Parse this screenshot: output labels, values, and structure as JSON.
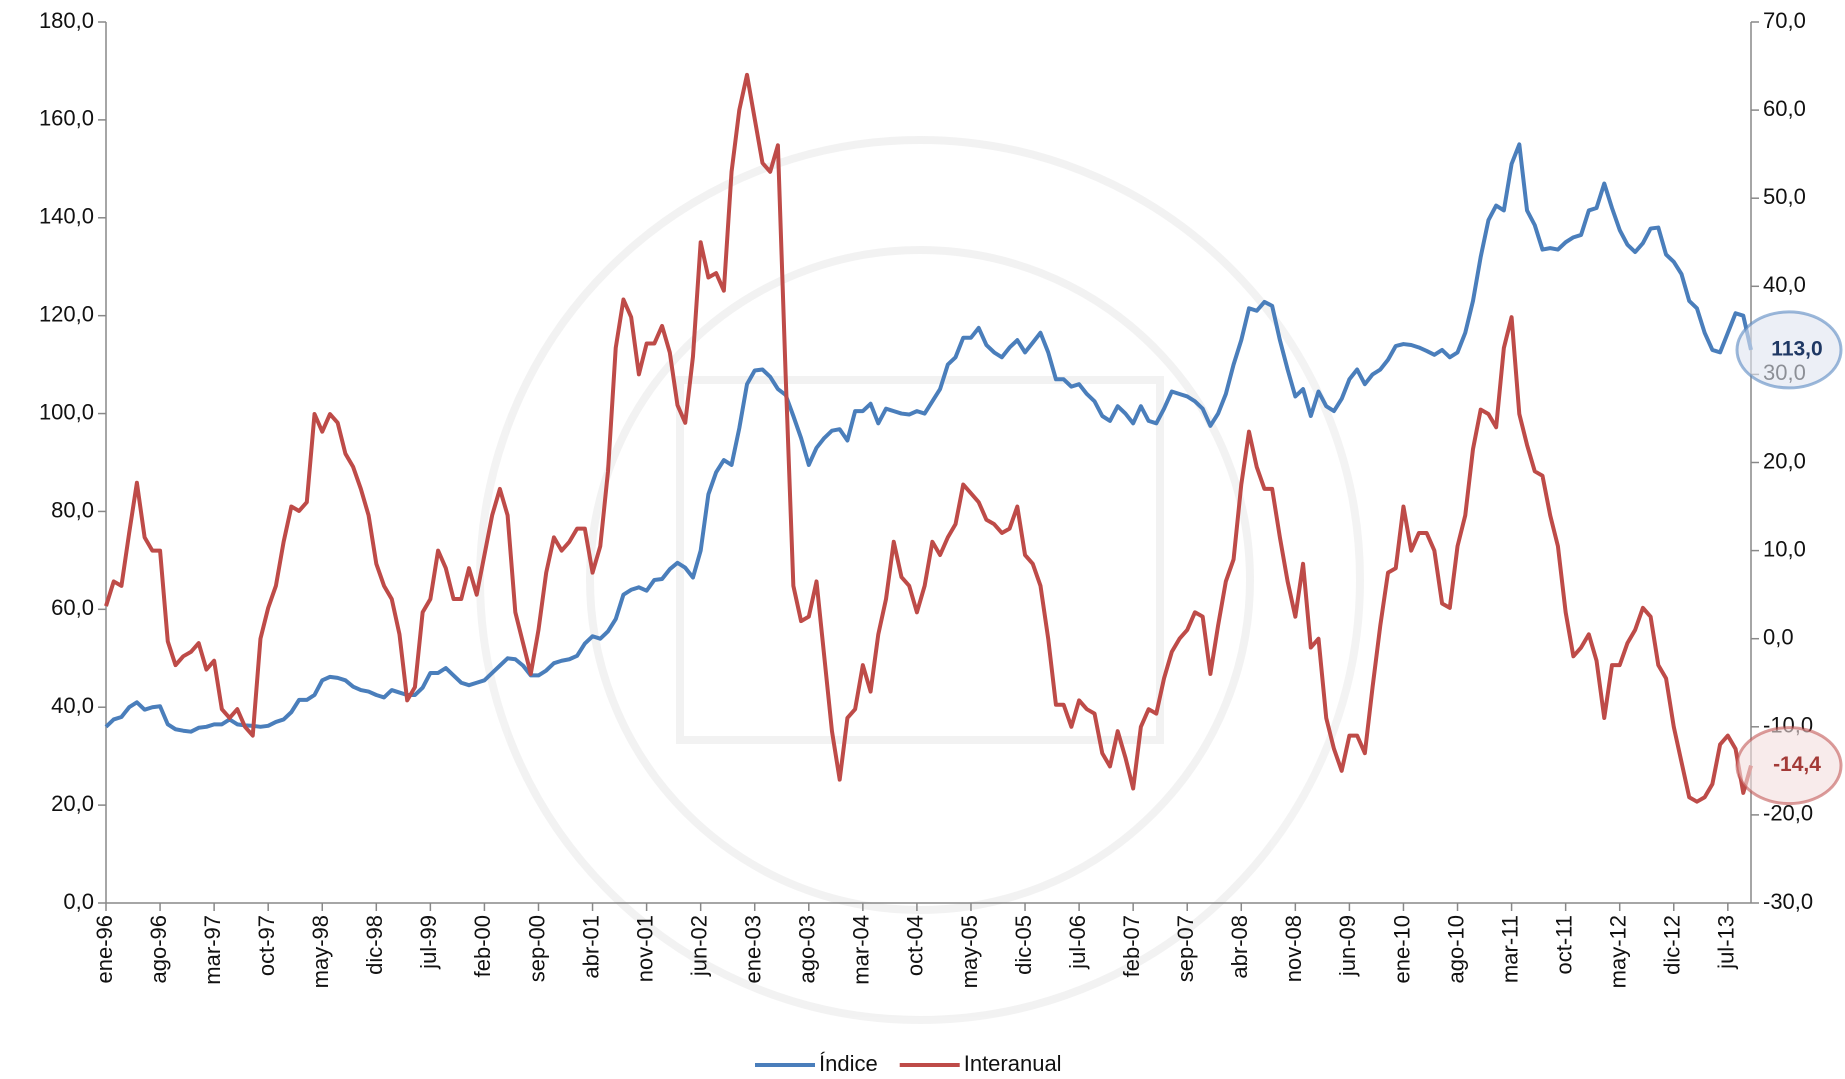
{
  "chart_data": {
    "type": "line",
    "categories": [
      "ene-96",
      null,
      null,
      null,
      null,
      null,
      null,
      "ago-96",
      null,
      null,
      null,
      null,
      null,
      null,
      "mar-97",
      null,
      null,
      null,
      null,
      null,
      null,
      "oct-97",
      null,
      null,
      null,
      null,
      null,
      null,
      "may-98",
      null,
      null,
      null,
      null,
      null,
      null,
      "dic-98",
      null,
      null,
      null,
      null,
      null,
      null,
      "jul-99",
      null,
      null,
      null,
      null,
      null,
      null,
      "feb-00",
      null,
      null,
      null,
      null,
      null,
      null,
      "sep-00",
      null,
      null,
      null,
      null,
      null,
      null,
      "abr-01",
      null,
      null,
      null,
      null,
      null,
      null,
      "nov-01",
      null,
      null,
      null,
      null,
      null,
      null,
      "jun-02",
      null,
      null,
      null,
      null,
      null,
      null,
      "ene-03",
      null,
      null,
      null,
      null,
      null,
      null,
      "ago-03",
      null,
      null,
      null,
      null,
      null,
      null,
      "mar-04",
      null,
      null,
      null,
      null,
      null,
      null,
      "oct-04",
      null,
      null,
      null,
      null,
      null,
      null,
      "may-05",
      null,
      null,
      null,
      null,
      null,
      null,
      "dic-05",
      null,
      null,
      null,
      null,
      null,
      null,
      "jul-06",
      null,
      null,
      null,
      null,
      null,
      null,
      "feb-07",
      null,
      null,
      null,
      null,
      null,
      null,
      "sep-07",
      null,
      null,
      null,
      null,
      null,
      null,
      "abr-08",
      null,
      null,
      null,
      null,
      null,
      null,
      "nov-08",
      null,
      null,
      null,
      null,
      null,
      null,
      "jun-09",
      null,
      null,
      null,
      null,
      null,
      null,
      "ene-10",
      null,
      null,
      null,
      null,
      null,
      null,
      "ago-10",
      null,
      null,
      null,
      null,
      null,
      null,
      "mar-11",
      null,
      null,
      null,
      null,
      null,
      null,
      "oct-11",
      null,
      null,
      null,
      null,
      null,
      null,
      "may-12",
      null,
      null,
      null,
      null,
      null,
      null,
      "dic-12",
      null,
      null,
      null,
      null,
      null,
      null,
      "jul-13",
      null,
      null,
      null
    ],
    "series": [
      {
        "name": "Índice",
        "color": "#4a7ebb",
        "axis": "y",
        "end_label": "113,0",
        "values": [
          36,
          37.5,
          38,
          40,
          41,
          39.5,
          40,
          40.2,
          36.5,
          35.5,
          35.2,
          35,
          35.8,
          36,
          36.5,
          36.5,
          37.5,
          36.5,
          36.3,
          36.2,
          36,
          36.2,
          37,
          37.5,
          39,
          41.5,
          41.5,
          42.5,
          45.5,
          46.2,
          46,
          45.5,
          44.2,
          43.5,
          43.2,
          42.5,
          42,
          43.5,
          43,
          42.5,
          42.5,
          44,
          47,
          47,
          48,
          46.5,
          45,
          44.5,
          45,
          45.5,
          47,
          48.5,
          50,
          49.8,
          48.5,
          46.5,
          46.5,
          47.5,
          49,
          49.5,
          49.8,
          50.5,
          53,
          54.5,
          54,
          55.5,
          58,
          63,
          64,
          64.5,
          63.8,
          66,
          66.2,
          68.2,
          69.5,
          68.5,
          66.5,
          72,
          83.5,
          88,
          90.5,
          89.5,
          97,
          106,
          108.8,
          109,
          107.5,
          105,
          103.8,
          99.5,
          95,
          89.5,
          93,
          95,
          96.5,
          96.8,
          94.5,
          100.5,
          100.5,
          102,
          98,
          101,
          100.5,
          100,
          99.8,
          100.5,
          100,
          102.5,
          105,
          110,
          111.5,
          115.5,
          115.5,
          117.5,
          114,
          112.5,
          111.5,
          113.5,
          115,
          112.5,
          114.5,
          116.5,
          112.5,
          107,
          107,
          105.5,
          106,
          104,
          102.5,
          99.5,
          98.5,
          101.5,
          100,
          98,
          101.5,
          98.5,
          98,
          101,
          104.5,
          104,
          103.5,
          102.5,
          101,
          97.5,
          100,
          104,
          110,
          115,
          121.5,
          121,
          122.8,
          122,
          115,
          109,
          103.5,
          105,
          99.5,
          104.5,
          101.5,
          100.5,
          103,
          107,
          109,
          106,
          108,
          109,
          111,
          113.8,
          114.2,
          114,
          113.5,
          112.8,
          112,
          113,
          111.5,
          112.5,
          116.5,
          123,
          132,
          139.5,
          142.5,
          141.5,
          151,
          155,
          141.5,
          138.5,
          133.5,
          133.8,
          133.5,
          135,
          136,
          136.5,
          141.5,
          142,
          147,
          142,
          137.5,
          134.5,
          133,
          134.8,
          137.8,
          138,
          132.5,
          131,
          128.5,
          123,
          121.5,
          116.5,
          113,
          112.5,
          116.5,
          120.5,
          120,
          113
        ]
      },
      {
        "name": "Interanual",
        "color": "#be4b48",
        "axis": "y2",
        "end_label": "-14,4",
        "values": [
          3.7,
          6.5,
          6,
          12,
          17.7,
          11.5,
          10,
          10,
          -0.3,
          -3,
          -2,
          -1.5,
          -0.5,
          -3.5,
          -2.5,
          -8,
          -9,
          -8,
          -10,
          -11,
          0,
          3.5,
          6,
          11,
          15,
          14.5,
          15.5,
          25.5,
          23.5,
          25.5,
          24.5,
          21,
          19.5,
          17,
          14,
          8.5,
          6,
          4.5,
          0.5,
          -7,
          -5.5,
          3,
          4.5,
          10,
          8,
          4.5,
          4.5,
          8,
          5,
          9.5,
          14,
          17,
          14,
          3,
          -0.5,
          -4,
          1,
          7.5,
          11.5,
          10,
          11,
          12.5,
          12.5,
          7.5,
          10.5,
          19,
          33,
          38.5,
          36.5,
          30,
          33.5,
          33.5,
          35.5,
          32.5,
          26.5,
          24.5,
          32,
          45,
          41,
          41.5,
          39.5,
          53,
          60,
          64,
          59,
          54,
          53,
          56,
          30,
          6,
          2,
          2.5,
          6.5,
          -2,
          -10.5,
          -16,
          -9,
          -8,
          -3,
          -6,
          0.5,
          4.5,
          11,
          7,
          6,
          3,
          6,
          11,
          9.5,
          11.5,
          13,
          17.5,
          16.5,
          15.5,
          13.5,
          13,
          12,
          12.5,
          15,
          9.5,
          8.5,
          6,
          0,
          -7.5,
          -7.5,
          -10,
          -7,
          -8,
          -8.5,
          -13,
          -14.5,
          -10.5,
          -13.5,
          -17,
          -10,
          -8,
          -8.5,
          -4.5,
          -1.5,
          0,
          1,
          3,
          2.5,
          -4,
          1.5,
          6.5,
          9,
          17.5,
          23.5,
          19.5,
          17,
          17,
          11.5,
          6.5,
          2.5,
          8.5,
          -1,
          0,
          -9,
          -12.5,
          -15,
          -11,
          -11,
          -13,
          -5.5,
          1.5,
          7.5,
          8,
          15,
          10,
          12,
          12,
          10,
          4,
          3.5,
          10.5,
          14,
          21.5,
          26,
          25.5,
          24,
          33,
          36.5,
          25.5,
          22,
          19,
          18.5,
          14,
          10.5,
          3,
          -2,
          -1,
          0.5,
          -2.5,
          -9,
          -3,
          -3,
          -0.5,
          1,
          3.5,
          2.5,
          -3,
          -4.5,
          -10,
          -14,
          -18,
          -18.5,
          -18,
          -16.5,
          -12,
          -11,
          -12.5,
          -17.5,
          -14.4
        ]
      }
    ],
    "ylim": [
      0,
      180
    ],
    "yticks": [
      {
        "value": 0,
        "label": "0,0"
      },
      {
        "value": 20,
        "label": "20,0"
      },
      {
        "value": 40,
        "label": "40,0"
      },
      {
        "value": 60,
        "label": "60,0"
      },
      {
        "value": 80,
        "label": "80,0"
      },
      {
        "value": 100,
        "label": "100,0"
      },
      {
        "value": 120,
        "label": "120,0"
      },
      {
        "value": 140,
        "label": "140,0"
      },
      {
        "value": 160,
        "label": "160,0"
      },
      {
        "value": 180,
        "label": "180,0"
      }
    ],
    "y2lim": [
      -30,
      70
    ],
    "y2ticks": [
      {
        "value": -30,
        "label": "-30,0"
      },
      {
        "value": -20,
        "label": "-20,0"
      },
      {
        "value": -10,
        "label": "-10,0"
      },
      {
        "value": 0,
        "label": "0,0"
      },
      {
        "value": 10,
        "label": "10,0"
      },
      {
        "value": 20,
        "label": "20,0"
      },
      {
        "value": 30,
        "label": "30,0"
      },
      {
        "value": 40,
        "label": "40,0"
      },
      {
        "value": 50,
        "label": "50,0"
      },
      {
        "value": 60,
        "label": "60,0"
      },
      {
        "value": 70,
        "label": "70,0"
      }
    ],
    "grid": false,
    "legend": "bottom"
  }
}
